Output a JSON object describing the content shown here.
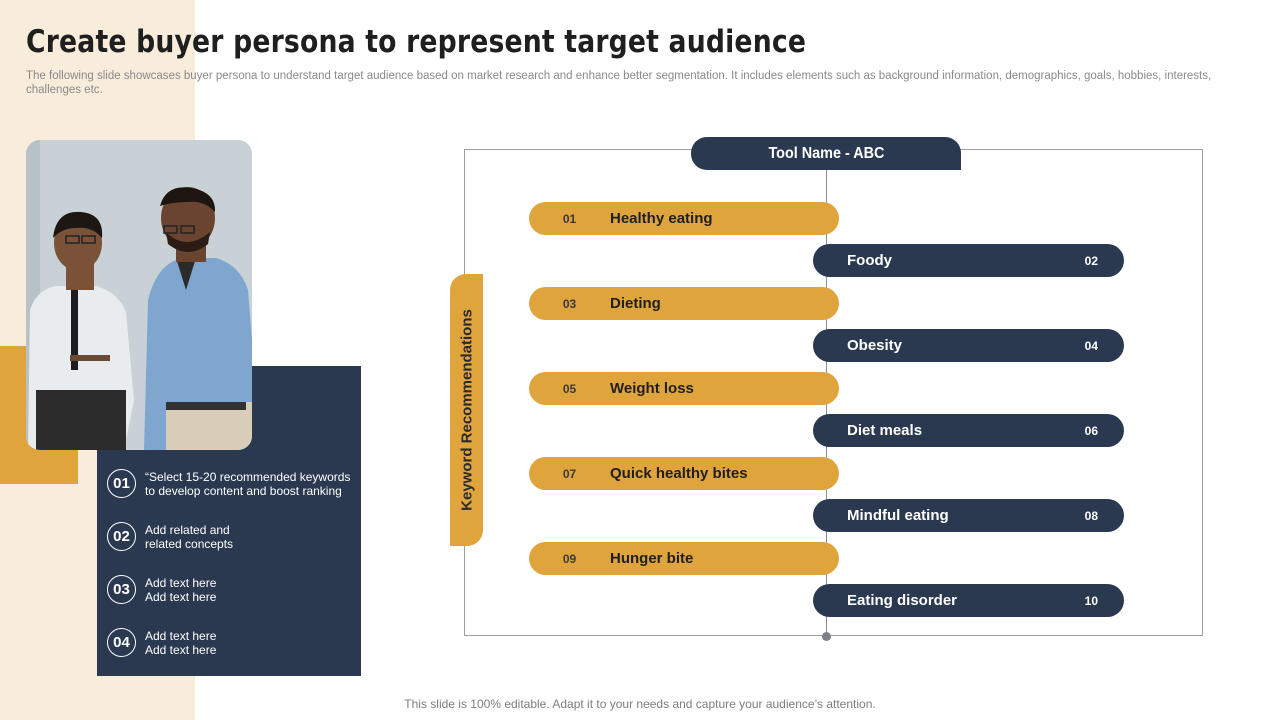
{
  "slide": {
    "title": "Create buyer persona to represent target audience",
    "subtitle": "The following slide showcases buyer persona to understand target audience based on market research and enhance better segmentation. It includes elements such as background information, demographics, goals, hobbies, interests, challenges etc.",
    "footer": "This slide is 100% editable. Adapt it to your needs and capture your audience’s attention."
  },
  "info_items": [
    {
      "num": "01",
      "line1": "“Select 15-20 recommended keywords",
      "line2": "to develop content and boost ranking"
    },
    {
      "num": "02",
      "line1": "Add related and",
      "line2": "related concepts"
    },
    {
      "num": "03",
      "line1": "Add text here",
      "line2": "Add text here"
    },
    {
      "num": "04",
      "line1": "Add text here",
      "line2": "Add text here"
    }
  ],
  "diagram": {
    "tool_name": "Tool Name - ABC",
    "side_label": "Keyword Recommendations",
    "keywords": [
      {
        "num": "01",
        "label": "Healthy eating"
      },
      {
        "num": "02",
        "label": "Foody"
      },
      {
        "num": "03",
        "label": "Dieting"
      },
      {
        "num": "04",
        "label": "Obesity"
      },
      {
        "num": "05",
        "label": "Weight loss"
      },
      {
        "num": "06",
        "label": "Diet meals"
      },
      {
        "num": "07",
        "label": "Quick healthy bites"
      },
      {
        "num": "08",
        "label": "Mindful eating"
      },
      {
        "num": "09",
        "label": "Hunger bite"
      },
      {
        "num": "10",
        "label": "Eating disorder"
      }
    ]
  },
  "colors": {
    "navy": "#2a3950",
    "gold": "#e0a43d",
    "beige": "#f8ecdb"
  }
}
